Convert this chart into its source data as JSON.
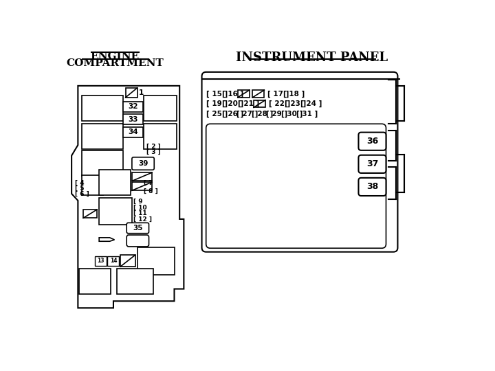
{
  "bg_color": "#ffffff",
  "line_color": "#000000",
  "text_color": "#000000",
  "title_engine_line1": "ENGINE",
  "title_engine_line2": "COMPARTMENT",
  "title_instrument": "INSTRUMENT PANEL"
}
